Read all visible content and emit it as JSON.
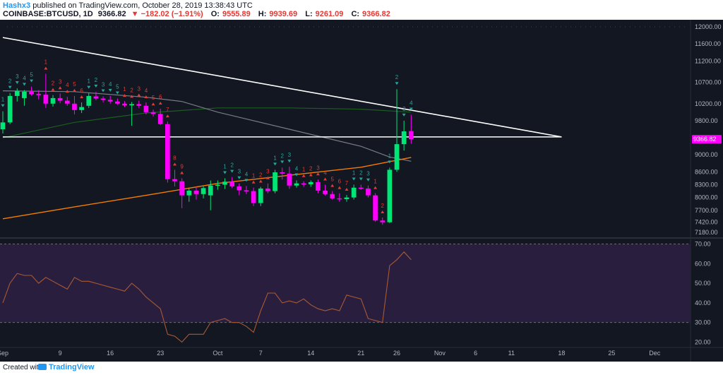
{
  "header": {
    "author": "Hashx3",
    "published_text": "published on TradingView.com, October 28, 2019 13:38:43 UTC",
    "symbol": "COINBASE:BTCUSD, 1D",
    "last": "9366.82",
    "change": "−182.02 (−1.91%)",
    "o_label": "O:",
    "o_value": "9555.89",
    "h_label": "H:",
    "h_value": "9939.69",
    "l_label": "L:",
    "l_value": "9261.09",
    "c_label": "C:",
    "c_value": "9366.82"
  },
  "footer": {
    "created_with": "Created with",
    "brand": "TradingView"
  },
  "colors": {
    "background": "#131722",
    "up": "#00e676",
    "down": "#ff00ff",
    "neutral": "#ffe0a0",
    "trendline": "#ffffff",
    "ma_orange": "#f57c00",
    "ma_green": "#1b5e20",
    "ma_gray": "#787b86",
    "rsi_line": "#a85a32",
    "rsi_band": "#2a1e3f",
    "buy_label": "#26a69a",
    "sell_label": "#e53935",
    "price_tag": "#ff00ff"
  },
  "chart_data": [
    {
      "type": "candlestick",
      "title": "",
      "y_ticks": [
        7180,
        7420,
        7700,
        8000,
        8300,
        8600,
        9000,
        9400,
        9800,
        10200,
        10700,
        11200,
        11600,
        12000
      ],
      "ylim": [
        7100,
        12100
      ],
      "x_ticks": [
        {
          "label": "Sep",
          "day": 0
        },
        {
          "label": "9",
          "day": 8
        },
        {
          "label": "16",
          "day": 15
        },
        {
          "label": "23",
          "day": 22
        },
        {
          "label": "Oct",
          "day": 30
        },
        {
          "label": "7",
          "day": 36
        },
        {
          "label": "14",
          "day": 43
        },
        {
          "label": "21",
          "day": 50
        },
        {
          "label": "26",
          "day": 55
        },
        {
          "label": "Nov",
          "day": 61
        },
        {
          "label": "6",
          "day": 66
        },
        {
          "label": "11",
          "day": 71
        },
        {
          "label": "18",
          "day": 78
        },
        {
          "label": "25",
          "day": 85
        },
        {
          "label": "Dec",
          "day": 91
        }
      ],
      "xlim": [
        0,
        96
      ],
      "last_price_label": "9366.82",
      "candles": [
        {
          "day": 0,
          "o": 9600,
          "h": 10020,
          "l": 9500,
          "c": 9760
        },
        {
          "day": 1,
          "o": 9760,
          "h": 10450,
          "l": 9720,
          "c": 10380
        },
        {
          "day": 2,
          "o": 10380,
          "h": 10560,
          "l": 10250,
          "c": 10500
        },
        {
          "day": 3,
          "o": 10330,
          "h": 10520,
          "l": 10150,
          "c": 10480
        },
        {
          "day": 4,
          "o": 10480,
          "h": 10600,
          "l": 10390,
          "c": 10420
        },
        {
          "day": 5,
          "o": 10430,
          "h": 10520,
          "l": 10300,
          "c": 10400
        },
        {
          "day": 6,
          "o": 10410,
          "h": 10900,
          "l": 10100,
          "c": 10200
        },
        {
          "day": 7,
          "o": 10200,
          "h": 10400,
          "l": 10130,
          "c": 10330
        },
        {
          "day": 8,
          "o": 10330,
          "h": 10440,
          "l": 10210,
          "c": 10270
        },
        {
          "day": 9,
          "o": 10270,
          "h": 10360,
          "l": 10150,
          "c": 10200
        },
        {
          "day": 10,
          "o": 10200,
          "h": 10380,
          "l": 9950,
          "c": 10050
        },
        {
          "day": 11,
          "o": 10050,
          "h": 10230,
          "l": 9980,
          "c": 10120
        },
        {
          "day": 12,
          "o": 10150,
          "h": 10450,
          "l": 10100,
          "c": 10380
        },
        {
          "day": 13,
          "o": 10370,
          "h": 10480,
          "l": 10280,
          "c": 10320
        },
        {
          "day": 14,
          "o": 10320,
          "h": 10370,
          "l": 10230,
          "c": 10290
        },
        {
          "day": 15,
          "o": 10290,
          "h": 10380,
          "l": 10200,
          "c": 10250
        },
        {
          "day": 16,
          "o": 10250,
          "h": 10320,
          "l": 10170,
          "c": 10200
        },
        {
          "day": 17,
          "o": 10200,
          "h": 10260,
          "l": 10120,
          "c": 10160
        },
        {
          "day": 18,
          "o": 10160,
          "h": 10240,
          "l": 9680,
          "c": 10190
        },
        {
          "day": 19,
          "o": 10190,
          "h": 10270,
          "l": 10100,
          "c": 10150
        },
        {
          "day": 20,
          "o": 10150,
          "h": 10230,
          "l": 9950,
          "c": 10000
        },
        {
          "day": 21,
          "o": 10000,
          "h": 10060,
          "l": 9900,
          "c": 9960
        },
        {
          "day": 22,
          "o": 9960,
          "h": 10080,
          "l": 9700,
          "c": 9720
        },
        {
          "day": 23,
          "o": 9720,
          "h": 9780,
          "l": 8350,
          "c": 8430
        },
        {
          "day": 24,
          "o": 8430,
          "h": 8650,
          "l": 8260,
          "c": 8380
        },
        {
          "day": 25,
          "o": 8380,
          "h": 8450,
          "l": 7750,
          "c": 8050
        },
        {
          "day": 26,
          "o": 8050,
          "h": 8230,
          "l": 7900,
          "c": 8160
        },
        {
          "day": 27,
          "o": 8160,
          "h": 8250,
          "l": 7950,
          "c": 8080
        },
        {
          "day": 28,
          "o": 8080,
          "h": 8260,
          "l": 7980,
          "c": 8220
        },
        {
          "day": 29,
          "o": 8050,
          "h": 8400,
          "l": 7700,
          "c": 8280
        },
        {
          "day": 30,
          "o": 8280,
          "h": 8400,
          "l": 8180,
          "c": 8300
        },
        {
          "day": 31,
          "o": 8300,
          "h": 8450,
          "l": 8200,
          "c": 8370
        },
        {
          "day": 32,
          "o": 8370,
          "h": 8480,
          "l": 8220,
          "c": 8260
        },
        {
          "day": 33,
          "o": 8260,
          "h": 8330,
          "l": 8050,
          "c": 8170
        },
        {
          "day": 34,
          "o": 8170,
          "h": 8270,
          "l": 8080,
          "c": 8150
        },
        {
          "day": 35,
          "o": 8150,
          "h": 8230,
          "l": 7800,
          "c": 7870
        },
        {
          "day": 36,
          "o": 7870,
          "h": 8250,
          "l": 7800,
          "c": 8210
        },
        {
          "day": 37,
          "o": 8210,
          "h": 8330,
          "l": 8100,
          "c": 8150
        },
        {
          "day": 38,
          "o": 8150,
          "h": 8650,
          "l": 8100,
          "c": 8590
        },
        {
          "day": 39,
          "o": 8590,
          "h": 8700,
          "l": 8420,
          "c": 8560
        },
        {
          "day": 40,
          "o": 8560,
          "h": 8720,
          "l": 8200,
          "c": 8280
        },
        {
          "day": 41,
          "o": 8280,
          "h": 8400,
          "l": 8230,
          "c": 8330
        },
        {
          "day": 42,
          "o": 8330,
          "h": 8380,
          "l": 8250,
          "c": 8310
        },
        {
          "day": 43,
          "o": 8310,
          "h": 8400,
          "l": 8250,
          "c": 8360
        },
        {
          "day": 44,
          "o": 8360,
          "h": 8420,
          "l": 8100,
          "c": 8160
        },
        {
          "day": 45,
          "o": 8160,
          "h": 8300,
          "l": 8050,
          "c": 8080
        },
        {
          "day": 46,
          "o": 8080,
          "h": 8150,
          "l": 7950,
          "c": 7980
        },
        {
          "day": 47,
          "o": 7980,
          "h": 8100,
          "l": 7900,
          "c": 7960
        },
        {
          "day": 48,
          "o": 7960,
          "h": 8060,
          "l": 7900,
          "c": 8000
        },
        {
          "day": 49,
          "o": 8000,
          "h": 8300,
          "l": 7950,
          "c": 8230
        },
        {
          "day": 50,
          "o": 8230,
          "h": 8300,
          "l": 8180,
          "c": 8210
        },
        {
          "day": 51,
          "o": 8210,
          "h": 8280,
          "l": 8000,
          "c": 8050
        },
        {
          "day": 52,
          "o": 8050,
          "h": 8100,
          "l": 7430,
          "c": 7460
        },
        {
          "day": 53,
          "o": 7460,
          "h": 7530,
          "l": 7360,
          "c": 7420
        },
        {
          "day": 54,
          "o": 7420,
          "h": 8700,
          "l": 7400,
          "c": 8650
        },
        {
          "day": 55,
          "o": 8650,
          "h": 10540,
          "l": 8600,
          "c": 9250
        },
        {
          "day": 56,
          "o": 9250,
          "h": 9800,
          "l": 9100,
          "c": 9550
        },
        {
          "day": 57,
          "o": 9555.89,
          "h": 9939.69,
          "l": 9261.09,
          "c": 9366.82
        }
      ],
      "trendline": {
        "start": {
          "day": 0,
          "price": 11750
        },
        "end": {
          "day": 78,
          "price": 9420
        }
      },
      "support_level": 9420,
      "ma_orange": [
        {
          "day": 0,
          "price": 7500
        },
        {
          "day": 10,
          "price": 7780
        },
        {
          "day": 20,
          "price": 8050
        },
        {
          "day": 30,
          "price": 8330
        },
        {
          "day": 40,
          "price": 8520
        },
        {
          "day": 50,
          "price": 8710
        },
        {
          "day": 57,
          "price": 8940
        }
      ],
      "ma_green": [
        {
          "day": 0,
          "price": 9400
        },
        {
          "day": 10,
          "price": 9760
        },
        {
          "day": 20,
          "price": 9980
        },
        {
          "day": 30,
          "price": 10100
        },
        {
          "day": 40,
          "price": 10100
        },
        {
          "day": 50,
          "price": 10070
        },
        {
          "day": 57,
          "price": 10000
        }
      ],
      "ma_gray": [
        {
          "day": 0,
          "price": 10500
        },
        {
          "day": 10,
          "price": 10480
        },
        {
          "day": 20,
          "price": 10350
        },
        {
          "day": 25,
          "price": 10250
        },
        {
          "day": 30,
          "price": 10000
        },
        {
          "day": 40,
          "price": 9600
        },
        {
          "day": 50,
          "price": 9200
        },
        {
          "day": 54,
          "price": 8950
        },
        {
          "day": 57,
          "price": 8850
        }
      ],
      "count_labels": [
        {
          "day": 0,
          "text": "1",
          "kind": "buy"
        },
        {
          "day": 1,
          "text": "2",
          "kind": "buy"
        },
        {
          "day": 2,
          "text": "3",
          "kind": "buy"
        },
        {
          "day": 3,
          "text": "4",
          "kind": "buy"
        },
        {
          "day": 4,
          "text": "5",
          "kind": "buy"
        },
        {
          "day": 6,
          "text": "1",
          "kind": "sell"
        },
        {
          "day": 7,
          "text": "2",
          "kind": "sell"
        },
        {
          "day": 8,
          "text": "3",
          "kind": "sell"
        },
        {
          "day": 9,
          "text": "4",
          "kind": "sell"
        },
        {
          "day": 10,
          "text": "5",
          "kind": "sell"
        },
        {
          "day": 11,
          "text": "6",
          "kind": "sell"
        },
        {
          "day": 12,
          "text": "1",
          "kind": "buy"
        },
        {
          "day": 13,
          "text": "2",
          "kind": "buy"
        },
        {
          "day": 14,
          "text": "3",
          "kind": "buy"
        },
        {
          "day": 15,
          "text": "4",
          "kind": "buy"
        },
        {
          "day": 16,
          "text": "5",
          "kind": "buy"
        },
        {
          "day": 17,
          "text": "1",
          "kind": "sell"
        },
        {
          "day": 18,
          "text": "2",
          "kind": "sell"
        },
        {
          "day": 19,
          "text": "3",
          "kind": "sell"
        },
        {
          "day": 20,
          "text": "4",
          "kind": "sell"
        },
        {
          "day": 21,
          "text": "5",
          "kind": "sell"
        },
        {
          "day": 22,
          "text": "6",
          "kind": "sell"
        },
        {
          "day": 23,
          "text": "7",
          "kind": "sell"
        },
        {
          "day": 24,
          "text": "8",
          "kind": "sell"
        },
        {
          "day": 25,
          "text": "9",
          "kind": "sell"
        },
        {
          "day": 31,
          "text": "1",
          "kind": "buy"
        },
        {
          "day": 32,
          "text": "2",
          "kind": "buy"
        },
        {
          "day": 33,
          "text": "3",
          "kind": "buy"
        },
        {
          "day": 34,
          "text": "4",
          "kind": "buy"
        },
        {
          "day": 35,
          "text": "1",
          "kind": "sell"
        },
        {
          "day": 36,
          "text": "2",
          "kind": "sell"
        },
        {
          "day": 37,
          "text": "3",
          "kind": "sell"
        },
        {
          "day": 38,
          "text": "1",
          "kind": "buy"
        },
        {
          "day": 39,
          "text": "2",
          "kind": "buy"
        },
        {
          "day": 40,
          "text": "3",
          "kind": "buy"
        },
        {
          "day": 41,
          "text": "4",
          "kind": "buy"
        },
        {
          "day": 42,
          "text": "1",
          "kind": "sell"
        },
        {
          "day": 43,
          "text": "2",
          "kind": "sell"
        },
        {
          "day": 44,
          "text": "3",
          "kind": "sell"
        },
        {
          "day": 45,
          "text": "4",
          "kind": "sell"
        },
        {
          "day": 46,
          "text": "5",
          "kind": "sell"
        },
        {
          "day": 47,
          "text": "6",
          "kind": "sell"
        },
        {
          "day": 48,
          "text": "7",
          "kind": "sell"
        },
        {
          "day": 49,
          "text": "1",
          "kind": "buy"
        },
        {
          "day": 50,
          "text": "2",
          "kind": "buy"
        },
        {
          "day": 51,
          "text": "3",
          "kind": "buy"
        },
        {
          "day": 52,
          "text": "1",
          "kind": "sell"
        },
        {
          "day": 53,
          "text": "2",
          "kind": "sell"
        },
        {
          "day": 54,
          "text": "1",
          "kind": "buy"
        },
        {
          "day": 55,
          "text": "2",
          "kind": "buy"
        },
        {
          "day": 56,
          "text": "3",
          "kind": "buy"
        },
        {
          "day": 57,
          "text": "4",
          "kind": "buy"
        }
      ]
    },
    {
      "type": "line",
      "title": "",
      "y_ticks": [
        20,
        30,
        40,
        50,
        60,
        70
      ],
      "ylim": [
        18,
        72
      ],
      "bands": [
        30,
        70
      ],
      "values": [
        {
          "day": 0,
          "v": 40
        },
        {
          "day": 1,
          "v": 50
        },
        {
          "day": 2,
          "v": 55
        },
        {
          "day": 3,
          "v": 54
        },
        {
          "day": 4,
          "v": 54
        },
        {
          "day": 5,
          "v": 50
        },
        {
          "day": 6,
          "v": 53
        },
        {
          "day": 7,
          "v": 51
        },
        {
          "day": 8,
          "v": 49
        },
        {
          "day": 9,
          "v": 47
        },
        {
          "day": 10,
          "v": 53
        },
        {
          "day": 11,
          "v": 51
        },
        {
          "day": 12,
          "v": 51
        },
        {
          "day": 13,
          "v": 50
        },
        {
          "day": 14,
          "v": 49
        },
        {
          "day": 15,
          "v": 48
        },
        {
          "day": 16,
          "v": 47
        },
        {
          "day": 17,
          "v": 46
        },
        {
          "day": 18,
          "v": 50
        },
        {
          "day": 19,
          "v": 47
        },
        {
          "day": 20,
          "v": 43
        },
        {
          "day": 21,
          "v": 40
        },
        {
          "day": 22,
          "v": 37
        },
        {
          "day": 23,
          "v": 24
        },
        {
          "day": 24,
          "v": 23
        },
        {
          "day": 25,
          "v": 20
        },
        {
          "day": 26,
          "v": 24
        },
        {
          "day": 27,
          "v": 24
        },
        {
          "day": 28,
          "v": 24
        },
        {
          "day": 29,
          "v": 30
        },
        {
          "day": 30,
          "v": 31
        },
        {
          "day": 31,
          "v": 32
        },
        {
          "day": 32,
          "v": 30
        },
        {
          "day": 33,
          "v": 30
        },
        {
          "day": 34,
          "v": 28
        },
        {
          "day": 35,
          "v": 25
        },
        {
          "day": 36,
          "v": 36
        },
        {
          "day": 37,
          "v": 45
        },
        {
          "day": 38,
          "v": 45
        },
        {
          "day": 39,
          "v": 40
        },
        {
          "day": 40,
          "v": 41
        },
        {
          "day": 41,
          "v": 40
        },
        {
          "day": 42,
          "v": 42
        },
        {
          "day": 43,
          "v": 39
        },
        {
          "day": 44,
          "v": 37
        },
        {
          "day": 45,
          "v": 36
        },
        {
          "day": 46,
          "v": 37
        },
        {
          "day": 47,
          "v": 36
        },
        {
          "day": 48,
          "v": 44
        },
        {
          "day": 49,
          "v": 43
        },
        {
          "day": 50,
          "v": 42
        },
        {
          "day": 51,
          "v": 32
        },
        {
          "day": 52,
          "v": 31
        },
        {
          "day": 53,
          "v": 30
        },
        {
          "day": 54,
          "v": 59
        },
        {
          "day": 55,
          "v": 62
        },
        {
          "day": 56,
          "v": 66
        },
        {
          "day": 57,
          "v": 62
        }
      ]
    }
  ]
}
